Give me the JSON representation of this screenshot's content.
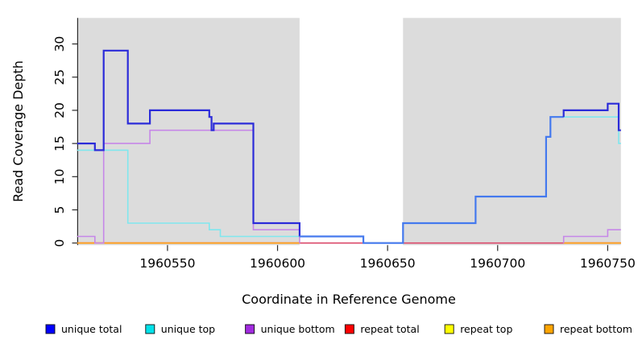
{
  "chart_data": {
    "type": "line",
    "subtype": "step",
    "title": "",
    "xlabel": "Coordinate in Reference Genome",
    "ylabel": "Read Coverage Depth",
    "xlim": [
      1960509,
      1960756
    ],
    "ylim": [
      0,
      34
    ],
    "x_ticks": [
      1960550,
      1960600,
      1960650,
      1960700,
      1960750
    ],
    "y_ticks": [
      0,
      5,
      10,
      15,
      20,
      25,
      30
    ],
    "grid": false,
    "legend_position": "bottom",
    "background_color": "#ffffff",
    "shaded_region_color": "#dcdcdc",
    "shaded_regions": [
      {
        "from": 1960509,
        "to": 1960610
      },
      {
        "from": 1960657,
        "to": 1960756
      }
    ],
    "series": [
      {
        "name": "unique total",
        "legend_color": "#0000ff",
        "zorder": 6,
        "line_width": 2.2,
        "paths": [
          {
            "color": "#2b2bd9",
            "points": [
              [
                1960509,
                15
              ],
              [
                1960517,
                14
              ],
              [
                1960521,
                29
              ],
              [
                1960532,
                18
              ],
              [
                1960542,
                20
              ],
              [
                1960569,
                19
              ],
              [
                1960570,
                17
              ],
              [
                1960571,
                18
              ],
              [
                1960589,
                3
              ],
              [
                1960610,
                1
              ]
            ]
          },
          {
            "color": "#4479ee",
            "points": [
              [
                1960610,
                1
              ],
              [
                1960639,
                0
              ],
              [
                1960657,
                3
              ],
              [
                1960690,
                7
              ],
              [
                1960722,
                16
              ],
              [
                1960724,
                19
              ],
              [
                1960730,
                19
              ]
            ]
          },
          {
            "color": "#2b2bd9",
            "points": [
              [
                1960730,
                19
              ],
              [
                1960730,
                20
              ],
              [
                1960750,
                21
              ],
              [
                1960755,
                17
              ],
              [
                1960756,
                17
              ]
            ]
          }
        ]
      },
      {
        "name": "unique top",
        "legend_color": "#00e2ea",
        "zorder": 4,
        "line_width": 1.6,
        "paths": [
          {
            "color": "#7fe7ee",
            "points": [
              [
                1960509,
                14
              ],
              [
                1960532,
                3
              ],
              [
                1960569,
                2
              ],
              [
                1960574,
                1
              ],
              [
                1960639,
                0
              ],
              [
                1960657,
                3
              ],
              [
                1960690,
                7
              ],
              [
                1960722,
                16
              ],
              [
                1960724,
                19
              ],
              [
                1960755,
                15
              ],
              [
                1960756,
                15
              ]
            ]
          }
        ]
      },
      {
        "name": "unique bottom",
        "legend_color": "#a12bdf",
        "zorder": 5,
        "line_width": 1.6,
        "paths": [
          {
            "color": "#c687e8",
            "points": [
              [
                1960509,
                1
              ],
              [
                1960517,
                0
              ],
              [
                1960521,
                15
              ],
              [
                1960542,
                17
              ],
              [
                1960589,
                2
              ],
              [
                1960610,
                0
              ]
            ]
          },
          {
            "color": "#c687e8",
            "points": [
              [
                1960730,
                0
              ],
              [
                1960730,
                1
              ],
              [
                1960750,
                2
              ],
              [
                1960756,
                2
              ]
            ]
          }
        ]
      },
      {
        "name": "repeat total",
        "legend_color": "#ff0000",
        "zorder": 2,
        "line_width": 1.6,
        "paths": [
          {
            "color": "#db4a6b",
            "points": [
              [
                1960509,
                0
              ],
              [
                1960756,
                0
              ]
            ]
          }
        ]
      },
      {
        "name": "repeat top",
        "legend_color": "#ffff00",
        "zorder": 1,
        "line_width": 1.4,
        "paths": [
          {
            "color": "#f0e63c",
            "points": [
              [
                1960509,
                0
              ],
              [
                1960756,
                0
              ]
            ]
          }
        ]
      },
      {
        "name": "repeat bottom",
        "legend_color": "#ffa500",
        "zorder": 3,
        "line_width": 1.8,
        "paths": [
          {
            "color": "#ff9e1e",
            "points": [
              [
                1960509,
                0
              ],
              [
                1960610,
                0
              ]
            ]
          },
          {
            "color": "#ff9e1e",
            "points": [
              [
                1960730,
                0
              ],
              [
                1960756,
                0
              ]
            ]
          }
        ]
      }
    ]
  }
}
